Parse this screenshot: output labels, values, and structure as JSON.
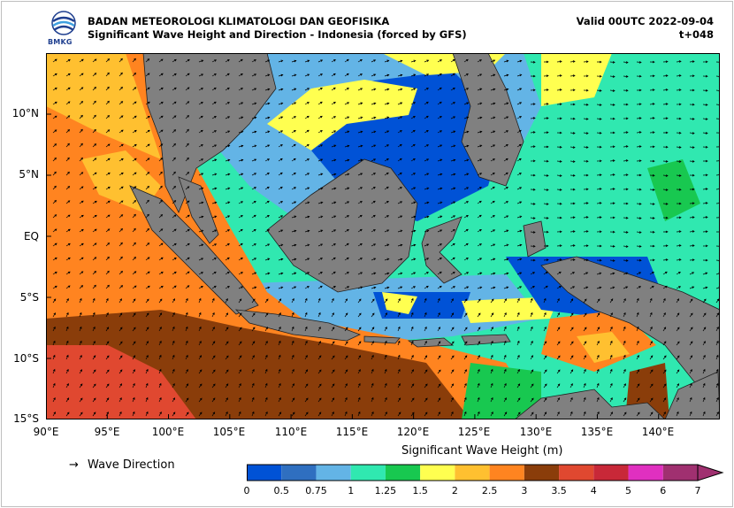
{
  "header": {
    "agency": "BADAN METEOROLOGI KLIMATOLOGI DAN GEOFISIKA",
    "subtitle": "Significant Wave Height and Direction - Indonesia (forced by GFS)",
    "valid": "Valid 00UTC 2022-09-04",
    "lead": "t+048",
    "logo_text": "BMKG"
  },
  "map": {
    "extent": {
      "lon_min": 90,
      "lon_max": 145,
      "lat_min": -15,
      "lat_max": 15
    },
    "lat_labels": [
      "10°N",
      "5°N",
      "EQ",
      "5°S",
      "10°S",
      "15°S"
    ],
    "lat_values": [
      10,
      5,
      0,
      -5,
      -10,
      -15
    ],
    "lon_labels": [
      "90°E",
      "95°E",
      "100°E",
      "105°E",
      "110°E",
      "115°E",
      "120°E",
      "125°E",
      "130°E",
      "135°E",
      "140°E"
    ],
    "lon_values": [
      90,
      95,
      100,
      105,
      110,
      115,
      120,
      125,
      130,
      135,
      140
    ],
    "land_color": "#808080"
  },
  "legend": {
    "direction_label": "Wave Direction",
    "arrow_symbol": "→",
    "colorbar_title": "Significant Wave Height (m)",
    "ticks": [
      "0",
      "0.5",
      "0.75",
      "1",
      "1.25",
      "1.5",
      "2",
      "2.5",
      "3",
      "3.5",
      "4",
      "5",
      "6",
      "7"
    ],
    "colors": [
      "#0052d6",
      "#2f6fc0",
      "#63b4e6",
      "#30e8b0",
      "#18c850",
      "#ffff50",
      "#ffc030",
      "#ff8420",
      "#8a3d0a",
      "#e04830",
      "#c82838",
      "#e030c0",
      "#a03070"
    ]
  }
}
